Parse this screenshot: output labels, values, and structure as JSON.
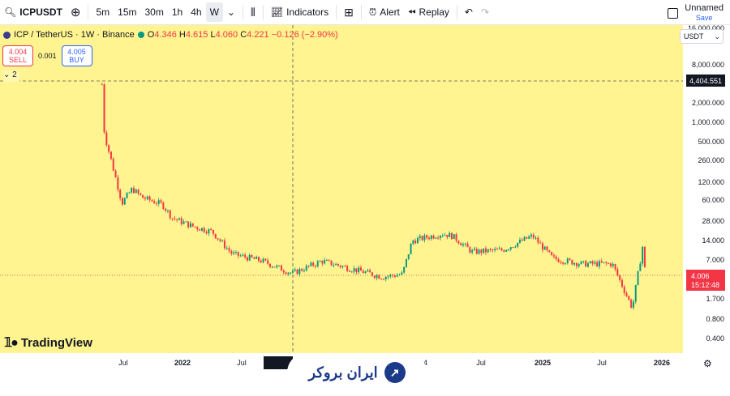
{
  "toolbar": {
    "symbol": "ICPUSDT",
    "intervals": [
      "5m",
      "15m",
      "30m",
      "1h",
      "4h",
      "W"
    ],
    "active_interval": "W",
    "indicators_label": "Indicators",
    "alert_label": "Alert",
    "replay_label": "Replay",
    "layout_name": "Unnamed",
    "save_label": "Save"
  },
  "legend": {
    "title": "ICP / TetherUS · 1W · Binance",
    "open_label": "O",
    "open": "4.346",
    "high_label": "H",
    "high": "4.615",
    "low_label": "L",
    "low": "4.060",
    "close_label": "C",
    "close": "4.221",
    "change": "−0.126 (−2.90%)"
  },
  "trade": {
    "sell_price": "4.004",
    "sell_label": "SELL",
    "spread": "0.001",
    "buy_price": "4.005",
    "buy_label": "BUY"
  },
  "collapse_count": "2",
  "currency": "USDT",
  "brand": "TradingView",
  "watermark_text": "ایران بروکر",
  "colors": {
    "background": "#fff48f",
    "up": "#089981",
    "down": "#f23645"
  },
  "chart_data": {
    "type": "candlestick",
    "y_scale": "log",
    "y_ticks": [
      "16,000.000",
      "8,000.000",
      "2,000.000",
      "1,000.000",
      "500.000",
      "260.000",
      "120.000",
      "60.000",
      "28.000",
      "14.000",
      "7.000",
      "1.700",
      "0.800",
      "0.400"
    ],
    "x_ticks": [
      "Jul",
      "2022",
      "Jul",
      "Mon 0",
      "24",
      "Jul",
      "2025",
      "Jul",
      "2026"
    ],
    "crosshair_price": "4,404.551",
    "last_price": "4.006",
    "countdown": "15:12:48",
    "series": [
      {
        "date": "2021-05",
        "close": 2300
      },
      {
        "date": "2021-05",
        "close": 420
      },
      {
        "date": "2021-06",
        "close": 150
      },
      {
        "date": "2021-07",
        "close": 40
      },
      {
        "date": "2021-08",
        "close": 65
      },
      {
        "date": "2021-09",
        "close": 48
      },
      {
        "date": "2021-11",
        "close": 38
      },
      {
        "date": "2021-12",
        "close": 24
      },
      {
        "date": "2022-02",
        "close": 18
      },
      {
        "date": "2022-04",
        "close": 15
      },
      {
        "date": "2022-06",
        "close": 7
      },
      {
        "date": "2022-09",
        "close": 5.5
      },
      {
        "date": "2022-12",
        "close": 3.6
      },
      {
        "date": "2023-03",
        "close": 5.5
      },
      {
        "date": "2023-06",
        "close": 4.2
      },
      {
        "date": "2023-09",
        "close": 3.2
      },
      {
        "date": "2023-11",
        "close": 3.5
      },
      {
        "date": "2023-12",
        "close": 11
      },
      {
        "date": "2024-03",
        "close": 14
      },
      {
        "date": "2024-04",
        "close": 13
      },
      {
        "date": "2024-06",
        "close": 7.5
      },
      {
        "date": "2024-09",
        "close": 8
      },
      {
        "date": "2024-12",
        "close": 13
      },
      {
        "date": "2025-02",
        "close": 6
      },
      {
        "date": "2025-05",
        "close": 5
      },
      {
        "date": "2025-08",
        "close": 5
      },
      {
        "date": "2025-10",
        "close": 1.1
      },
      {
        "date": "2025-11",
        "close": 9
      },
      {
        "date": "2025-11",
        "close": 4.0
      }
    ]
  }
}
